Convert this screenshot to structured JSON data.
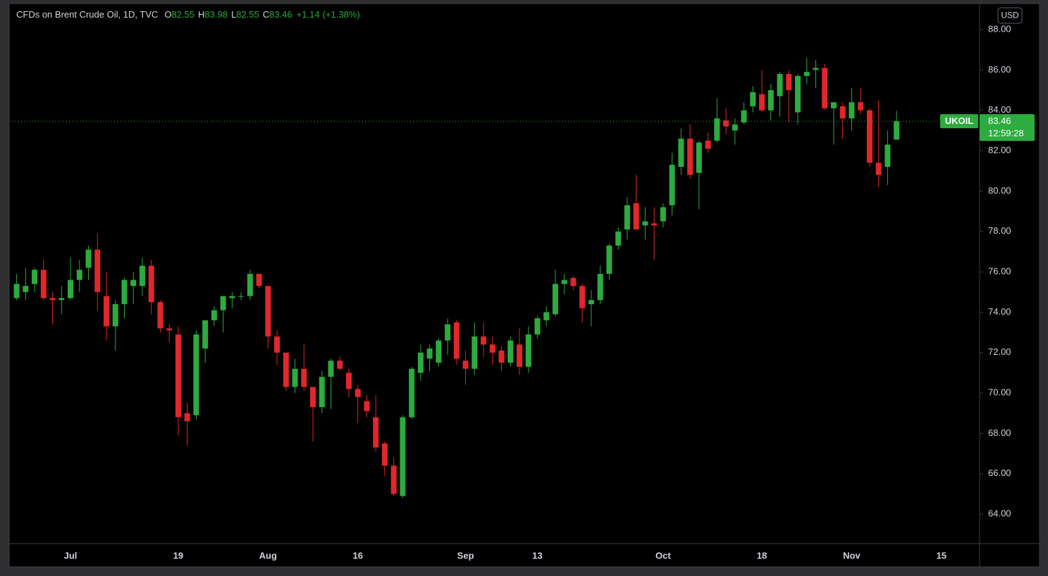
{
  "chart_data": {
    "type": "candlestick",
    "title": "CFDs on Brent Crude Oil, 1D, TVC",
    "ohlc_labels": [
      "O",
      "H",
      "L",
      "C"
    ],
    "change": "+1.14",
    "change_percent": "(+1.38%)",
    "currency": "USD",
    "symbol": "UKOIL",
    "countdown": "12:59:28",
    "up_color": "#2dab3f",
    "down_color": "#e0272b",
    "grid": false,
    "last_price_line": true,
    "categories": [
      null,
      null,
      null,
      null,
      null,
      null,
      "Jul",
      null,
      null,
      null,
      null,
      null,
      null,
      null,
      null,
      null,
      null,
      null,
      "19",
      null,
      null,
      null,
      null,
      null,
      null,
      null,
      null,
      null,
      "Aug",
      null,
      null,
      null,
      null,
      null,
      null,
      null,
      null,
      null,
      "16",
      null,
      null,
      null,
      null,
      null,
      null,
      null,
      null,
      null,
      null,
      null,
      "Sep",
      null,
      null,
      null,
      null,
      null,
      null,
      null,
      "13",
      null,
      null,
      null,
      null,
      null,
      null,
      null,
      null,
      null,
      null,
      null,
      null,
      null,
      "Oct",
      null,
      null,
      null,
      null,
      null,
      null,
      null,
      null,
      null,
      null,
      "18",
      null,
      null,
      null,
      null,
      null,
      null,
      null,
      null,
      null,
      "Nov",
      null,
      null,
      null,
      null,
      null,
      null,
      null,
      null,
      null,
      "15"
    ],
    "open": [
      74.7,
      75.0,
      75.4,
      76.1,
      74.7,
      74.6,
      74.7,
      75.6,
      76.2,
      77.1,
      74.8,
      73.3,
      74.4,
      75.3,
      75.3,
      76.3,
      74.5,
      73.2,
      72.9,
      69.0,
      68.9,
      72.2,
      73.6,
      74.1,
      74.7,
      74.8,
      74.8,
      75.9,
      75.3,
      72.8,
      72.0,
      70.3,
      71.2,
      70.3,
      69.3,
      70.8,
      71.6,
      71.0,
      70.2,
      69.6,
      68.8,
      67.5,
      66.4,
      64.9,
      68.8,
      71.0,
      71.7,
      71.5,
      72.6,
      73.5,
      71.6,
      71.2,
      72.8,
      72.4,
      72.1,
      71.5,
      72.4,
      71.3,
      72.9,
      73.6,
      73.9,
      75.4,
      75.7,
      75.3,
      74.4,
      74.6,
      75.9,
      77.3,
      78.1,
      79.4,
      78.3,
      78.4,
      78.5,
      79.3,
      81.2,
      82.6,
      80.9,
      82.5,
      82.5,
      83.5,
      83.0,
      83.4,
      84.2,
      84.8,
      84.0,
      84.7,
      85.8,
      83.9,
      85.7,
      86.0,
      86.1,
      84.1,
      84.2,
      83.6,
      84.4,
      84.0,
      81.4,
      81.2,
      82.55,
      null,
      null,
      null,
      null,
      null
    ],
    "high": [
      75.9,
      76.2,
      76.2,
      76.6,
      75.0,
      75.3,
      76.7,
      76.6,
      77.3,
      77.9,
      76.0,
      74.6,
      75.7,
      76.0,
      76.7,
      76.6,
      74.6,
      73.4,
      73.3,
      69.5,
      73.1,
      73.6,
      74.3,
      74.8,
      75.0,
      75.0,
      76.1,
      75.9,
      75.3,
      73.1,
      72.0,
      71.7,
      72.4,
      70.3,
      71.1,
      71.7,
      71.8,
      71.2,
      70.4,
      69.9,
      69.9,
      67.6,
      66.8,
      68.9,
      71.3,
      72.4,
      72.4,
      72.7,
      73.7,
      73.6,
      72.1,
      73.5,
      73.5,
      72.8,
      72.3,
      72.8,
      73.2,
      73.3,
      73.8,
      74.3,
      76.1,
      75.9,
      75.8,
      75.4,
      75.1,
      76.3,
      77.4,
      78.2,
      79.7,
      80.8,
      79.2,
      79.2,
      79.4,
      81.9,
      83.1,
      83.3,
      82.5,
      82.9,
      84.6,
      84.1,
      83.6,
      84.4,
      85.2,
      86.0,
      85.3,
      85.9,
      86.0,
      85.8,
      86.6,
      86.5,
      86.3,
      84.4,
      84.4,
      85.1,
      85.1,
      84.1,
      84.5,
      83.0,
      83.98,
      null,
      null,
      null,
      null,
      null
    ],
    "low": [
      74.6,
      74.6,
      75.0,
      74.6,
      73.4,
      73.9,
      74.6,
      75.0,
      75.6,
      74.1,
      72.6,
      72.1,
      73.7,
      74.4,
      74.8,
      73.9,
      73.0,
      72.5,
      67.9,
      67.4,
      68.7,
      71.5,
      73.3,
      73.0,
      74.2,
      74.6,
      74.6,
      75.2,
      72.2,
      71.4,
      70.1,
      70.0,
      70.1,
      67.6,
      69.0,
      69.2,
      71.1,
      69.8,
      68.5,
      68.8,
      67.1,
      65.9,
      64.9,
      64.8,
      68.7,
      70.6,
      71.1,
      71.3,
      71.9,
      71.4,
      70.4,
      70.9,
      71.8,
      71.4,
      71.1,
      71.3,
      70.9,
      71.0,
      72.7,
      73.3,
      73.8,
      74.9,
      75.1,
      73.5,
      73.3,
      74.4,
      75.6,
      77.1,
      77.6,
      78.1,
      77.6,
      76.6,
      78.2,
      78.8,
      80.8,
      80.6,
      79.1,
      81.9,
      82.4,
      82.8,
      82.3,
      83.3,
      83.9,
      83.9,
      83.5,
      83.7,
      83.4,
      83.3,
      85.3,
      85.1,
      84.0,
      82.3,
      82.6,
      83.0,
      83.8,
      81.2,
      80.2,
      80.3,
      82.55,
      null,
      null,
      null,
      null,
      null
    ],
    "close": [
      75.4,
      75.3,
      76.1,
      74.7,
      74.6,
      74.7,
      75.6,
      76.1,
      77.1,
      75.0,
      73.3,
      74.4,
      75.6,
      75.6,
      76.3,
      74.5,
      73.2,
      73.1,
      68.8,
      68.6,
      72.9,
      73.6,
      74.1,
      74.8,
      74.8,
      74.8,
      75.9,
      75.3,
      72.8,
      72.0,
      70.3,
      71.2,
      70.3,
      69.3,
      70.8,
      71.6,
      71.2,
      70.2,
      69.8,
      69.1,
      67.3,
      66.4,
      65.0,
      68.8,
      71.2,
      72.0,
      72.2,
      72.6,
      73.4,
      71.7,
      71.2,
      72.8,
      72.4,
      72.0,
      71.5,
      72.6,
      71.3,
      72.9,
      73.7,
      74.0,
      75.4,
      75.6,
      75.3,
      74.2,
      74.6,
      75.9,
      77.3,
      78.0,
      79.3,
      78.1,
      78.5,
      78.3,
      79.2,
      81.3,
      82.6,
      80.8,
      82.4,
      82.1,
      83.6,
      83.2,
      83.3,
      84.0,
      84.9,
      84.0,
      85.0,
      85.8,
      85.0,
      85.7,
      85.9,
      86.1,
      84.1,
      84.4,
      83.6,
      84.4,
      84.0,
      81.4,
      80.8,
      82.3,
      83.46,
      null,
      null,
      null,
      null,
      null
    ],
    "ylim": [
      62.54,
      89.29
    ],
    "yticks": [
      {
        "value": 64,
        "label": "64.00"
      },
      {
        "value": 66,
        "label": "66.00"
      },
      {
        "value": 68,
        "label": "68.00"
      },
      {
        "value": 70,
        "label": "70.00"
      },
      {
        "value": 72,
        "label": "72.00"
      },
      {
        "value": 74,
        "label": "74.00"
      },
      {
        "value": 76,
        "label": "76.00"
      },
      {
        "value": 78,
        "label": "78.00"
      },
      {
        "value": 80,
        "label": "80.00"
      },
      {
        "value": 82,
        "label": "82.00"
      },
      {
        "value": 84,
        "label": "84.00"
      },
      {
        "value": 86,
        "label": "86.00"
      },
      {
        "value": 88,
        "label": "88.00"
      }
    ]
  }
}
